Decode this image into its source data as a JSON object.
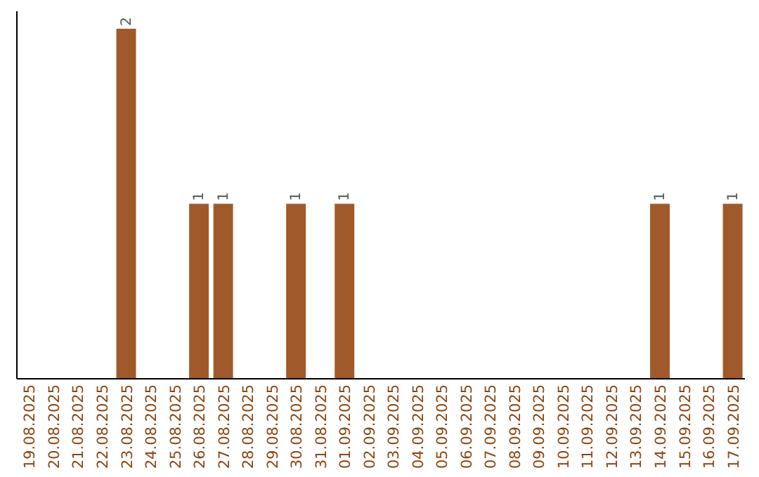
{
  "chart_data": {
    "type": "bar",
    "categories": [
      "19.08.2025",
      "20.08.2025",
      "21.08.2025",
      "22.08.2025",
      "23.08.2025",
      "24.08.2025",
      "25.08.2025",
      "26.08.2025",
      "27.08.2025",
      "28.08.2025",
      "29.08.2025",
      "30.08.2025",
      "31.08.2025",
      "01.09.2025",
      "02.09.2025",
      "03.09.2025",
      "04.09.2025",
      "05.09.2025",
      "06.09.2025",
      "07.09.2025",
      "08.09.2025",
      "09.09.2025",
      "10.09.2025",
      "11.09.2025",
      "12.09.2025",
      "13.09.2025",
      "14.09.2025",
      "15.09.2025",
      "16.09.2025",
      "17.09.2025"
    ],
    "values": [
      0,
      0,
      0,
      0,
      2,
      0,
      0,
      1,
      1,
      0,
      0,
      1,
      0,
      1,
      0,
      0,
      0,
      0,
      0,
      0,
      0,
      0,
      0,
      0,
      0,
      0,
      1,
      0,
      0,
      1
    ],
    "color": "#a0592a",
    "value_labels": [
      null,
      null,
      null,
      null,
      "2",
      null,
      null,
      "1",
      "1",
      null,
      null,
      "1",
      null,
      "1",
      null,
      null,
      null,
      null,
      null,
      null,
      null,
      null,
      null,
      null,
      null,
      null,
      "1",
      null,
      null,
      "1"
    ]
  }
}
